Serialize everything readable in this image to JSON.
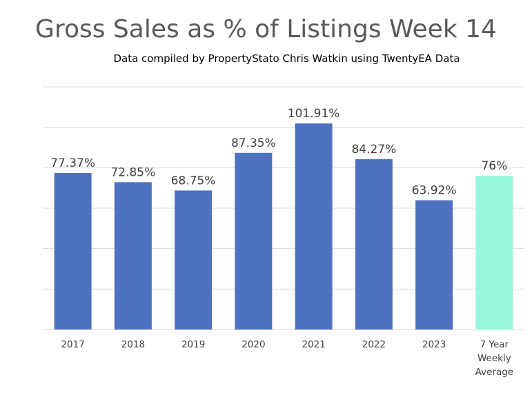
{
  "chart_data": {
    "type": "bar",
    "title": "Gross Sales as % of Listings Week 14",
    "subtitle": "Data compiled by PropertyStato Chris Watkin using TwentyEA Data",
    "categories": [
      "2017",
      "2018",
      "2019",
      "2020",
      "2021",
      "2022",
      "2023",
      "7 Year Weekly Average"
    ],
    "category_lines": [
      [
        "2017"
      ],
      [
        "2018"
      ],
      [
        "2019"
      ],
      [
        "2020"
      ],
      [
        "2021"
      ],
      [
        "2022"
      ],
      [
        "2023"
      ],
      [
        "7 Year",
        "Weekly",
        "Average"
      ]
    ],
    "values": [
      77.37,
      72.85,
      68.75,
      87.35,
      101.91,
      84.27,
      63.92,
      76
    ],
    "data_labels": [
      "77.37%",
      "72.85%",
      "68.75%",
      "87.35%",
      "101.91%",
      "84.27%",
      "63.92%",
      "76%"
    ],
    "ylim": [
      0,
      120
    ],
    "grid": true,
    "colors": {
      "bar": "#4e72c0",
      "highlight": "#96f7dc",
      "grid": "#d9d9d9",
      "text": "#404040"
    },
    "highlight_index": 7
  }
}
